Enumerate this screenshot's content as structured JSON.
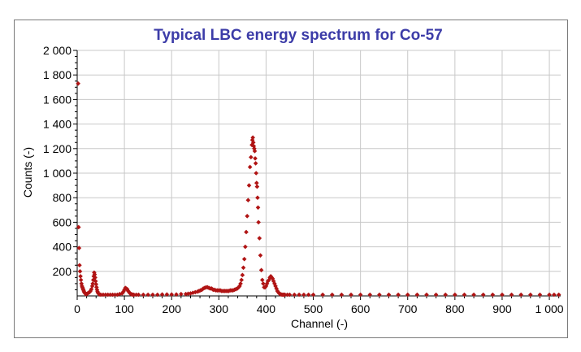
{
  "chart_data": {
    "type": "scatter",
    "title": "Typical LBC energy spectrum for Co-57",
    "xlabel": "Channel (-)",
    "ylabel": "Counts (-)",
    "xlim": [
      0,
      1024
    ],
    "ylim": [
      0,
      2000
    ],
    "xticks": [
      0,
      100,
      200,
      300,
      400,
      500,
      600,
      700,
      800,
      900,
      1000
    ],
    "xtick_labels": [
      "0",
      "100",
      "200",
      "300",
      "400",
      "500",
      "600",
      "700",
      "800",
      "900",
      "1 000"
    ],
    "yticks": [
      200,
      400,
      600,
      800,
      1000,
      1200,
      1400,
      1600,
      1800,
      2000
    ],
    "ytick_labels": [
      "200",
      "400",
      "600",
      "800",
      "1 000",
      "1 200",
      "1 400",
      "1 600",
      "1 800",
      "2 000"
    ],
    "grid": true,
    "legend": "none",
    "marker": "diamond",
    "colors": {
      "title": "#3c3ca8",
      "marker": "#b01414",
      "grid": "#c8c8c8"
    },
    "series": [
      {
        "x": [
          2,
          3,
          4,
          5,
          6,
          7,
          8,
          9,
          10,
          11,
          12,
          13,
          14,
          15,
          16,
          17,
          18,
          19,
          20,
          22,
          24,
          26,
          28,
          30,
          32,
          33,
          34,
          35,
          36,
          37,
          38,
          39,
          40,
          41,
          42,
          43,
          44,
          46,
          48,
          50,
          55,
          60,
          65,
          70,
          75,
          80,
          85,
          90,
          95,
          98,
          100,
          102,
          104,
          106,
          108,
          110,
          112,
          114,
          116,
          118,
          120,
          125,
          130,
          140,
          150,
          160,
          170,
          180,
          190,
          200,
          210,
          220,
          230,
          235,
          240,
          245,
          250,
          255,
          258,
          261,
          264,
          267,
          270,
          273,
          276,
          279,
          282,
          285,
          288,
          291,
          294,
          297,
          300,
          303,
          306,
          309,
          312,
          315,
          318,
          321,
          324,
          327,
          330,
          333,
          336,
          339,
          342,
          344,
          346,
          348,
          350,
          352,
          354,
          356,
          358,
          360,
          362,
          364,
          366,
          368,
          370,
          371,
          372,
          373,
          374,
          375,
          376,
          377,
          378,
          379,
          380,
          381,
          382,
          383,
          384,
          386,
          388,
          390,
          392,
          394,
          396,
          398,
          400,
          402,
          404,
          406,
          408,
          410,
          412,
          414,
          416,
          418,
          420,
          422,
          424,
          426,
          428,
          430,
          432,
          434,
          436,
          438,
          440,
          445,
          450,
          460,
          470,
          480,
          490,
          500,
          520,
          540,
          560,
          580,
          600,
          620,
          640,
          660,
          680,
          700,
          720,
          740,
          760,
          780,
          800,
          820,
          840,
          860,
          880,
          900,
          920,
          940,
          960,
          980,
          1000,
          1010,
          1020
        ],
        "y": [
          1730,
          560,
          390,
          250,
          200,
          160,
          130,
          100,
          80,
          70,
          60,
          50,
          40,
          30,
          25,
          20,
          15,
          15,
          15,
          20,
          25,
          30,
          40,
          55,
          80,
          100,
          130,
          160,
          190,
          175,
          150,
          120,
          95,
          70,
          50,
          35,
          25,
          15,
          12,
          10,
          10,
          10,
          10,
          10,
          10,
          10,
          10,
          15,
          20,
          35,
          50,
          65,
          60,
          55,
          40,
          30,
          20,
          15,
          12,
          10,
          10,
          10,
          10,
          10,
          10,
          10,
          10,
          12,
          12,
          12,
          12,
          15,
          15,
          18,
          20,
          25,
          30,
          35,
          40,
          45,
          50,
          60,
          65,
          70,
          70,
          65,
          60,
          60,
          50,
          50,
          45,
          45,
          45,
          45,
          40,
          40,
          40,
          40,
          40,
          40,
          45,
          45,
          45,
          50,
          55,
          60,
          70,
          80,
          100,
          130,
          170,
          230,
          300,
          400,
          520,
          650,
          780,
          900,
          1050,
          1130,
          1230,
          1270,
          1290,
          1250,
          1220,
          1200,
          1180,
          1120,
          1080,
          1000,
          920,
          890,
          800,
          720,
          600,
          470,
          330,
          210,
          130,
          100,
          70,
          70,
          80,
          100,
          120,
          130,
          150,
          160,
          150,
          140,
          120,
          100,
          80,
          60,
          40,
          30,
          20,
          15,
          12,
          10,
          10,
          10,
          10,
          10,
          10,
          10,
          10,
          10,
          10,
          10,
          10,
          10,
          10,
          10,
          10,
          10,
          10,
          10,
          10,
          10,
          10,
          10,
          10,
          10,
          10,
          10,
          10,
          10,
          10,
          10,
          10,
          10,
          10,
          10,
          10,
          10,
          10
        ]
      }
    ]
  }
}
